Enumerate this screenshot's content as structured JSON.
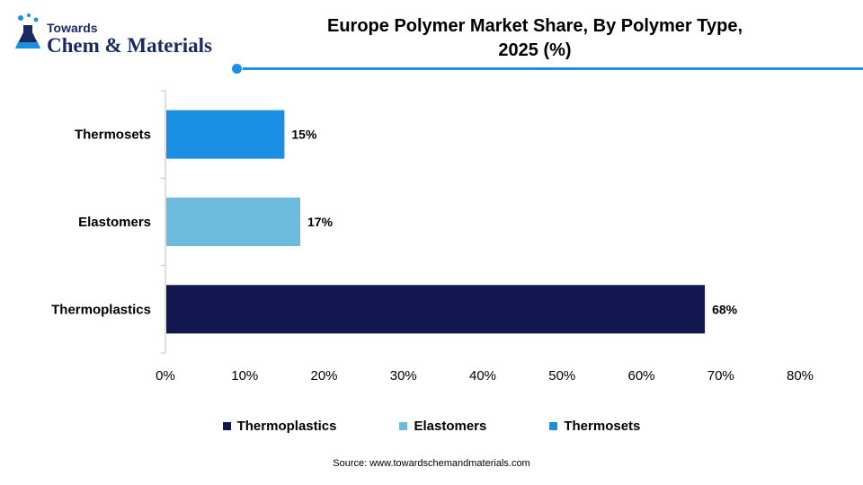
{
  "logo": {
    "top_text": "Towards",
    "main_text": "Chem & Materials"
  },
  "title_line1": "Europe Polymer Market Share, By Polymer Type,",
  "title_line2": "2025 (%)",
  "colors": {
    "accent": "#1a8fe3",
    "thermoplastics": "#12174f",
    "elastomers": "#6dbcde",
    "thermosets": "#1a8fe3"
  },
  "chart_data": {
    "type": "bar",
    "orientation": "horizontal",
    "categories": [
      "Thermosets",
      "Elastomers",
      "Thermoplastics"
    ],
    "values": [
      15,
      17,
      68
    ],
    "value_labels": [
      "15%",
      "17%",
      "68%"
    ],
    "colors": [
      "#1a8fe3",
      "#6dbcde",
      "#12174f"
    ],
    "xlim": [
      0,
      80
    ],
    "x_ticks": [
      "0%",
      "10%",
      "20%",
      "30%",
      "40%",
      "50%",
      "60%",
      "70%",
      "80%"
    ],
    "grid": false,
    "legend_position": "bottom",
    "legend": [
      {
        "label": "Thermoplastics",
        "color": "#12174f"
      },
      {
        "label": "Elastomers",
        "color": "#6dbcde"
      },
      {
        "label": "Thermosets",
        "color": "#1a8fe3"
      }
    ]
  },
  "source": "Source: www.towardschemandmaterials.com"
}
